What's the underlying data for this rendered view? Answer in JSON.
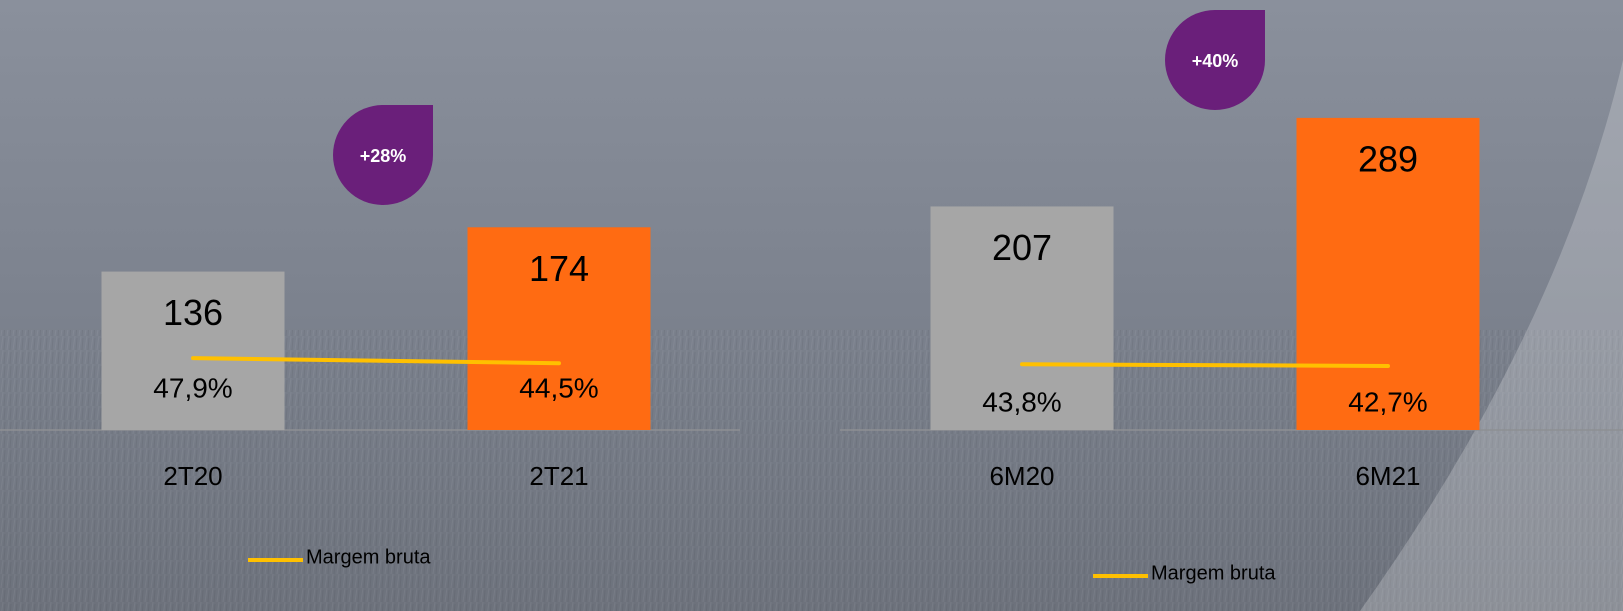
{
  "chart_data": [
    {
      "type": "bar",
      "categories": [
        "2T20",
        "2T21"
      ],
      "values": [
        136,
        174
      ],
      "colors": [
        "#a6a6a6",
        "#ff6b12"
      ],
      "series": [
        {
          "name": "Margem bruta",
          "type": "line",
          "color": "#ffc000",
          "values": [
            47.9,
            44.5
          ],
          "value_labels": [
            "47,9%",
            "44,5%"
          ]
        }
      ],
      "annotation": "+28%",
      "annotation_color": "#6a1f7a"
    },
    {
      "type": "bar",
      "categories": [
        "6M20",
        "6M21"
      ],
      "values": [
        207,
        289
      ],
      "colors": [
        "#a6a6a6",
        "#ff6b12"
      ],
      "series": [
        {
          "name": "Margem bruta",
          "type": "line",
          "color": "#ffc000",
          "values": [
            43.8,
            42.7
          ],
          "value_labels": [
            "43,8%",
            "42,7%"
          ]
        }
      ],
      "annotation": "+40%",
      "annotation_color": "#6a1f7a"
    }
  ]
}
